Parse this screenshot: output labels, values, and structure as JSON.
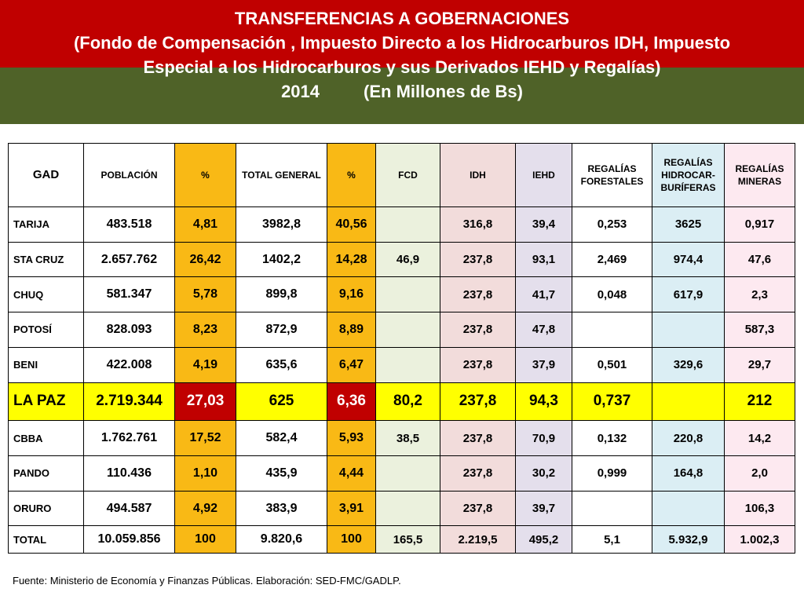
{
  "title": {
    "line1": "TRANSFERENCIAS A GOBERNACIONES",
    "line2": "(Fondo de Compensación , Impuesto Directo a los Hidrocarburos IDH, Impuesto",
    "line3": "Especial a los Hidrocarburos y sus Derivados IEHD y Regalías)",
    "year": "2014",
    "unit": "(En Millones de Bs)"
  },
  "table": {
    "headers": {
      "gad": "GAD",
      "poblacion": "POBLACIÓN",
      "pct1": "%",
      "total_general": "TOTAL GENERAL",
      "pct2": "%",
      "fcd": "FCD",
      "idh": "IDH",
      "iehd": "IEHD",
      "reg_forestales": "REGALÍAS FORESTALES",
      "reg_hidro": "REGALÍAS HIDROCAR-BURÍFERAS",
      "reg_mineras": "REGALÍAS MINERAS"
    },
    "rows": [
      {
        "gad": "TARIJA",
        "poblacion": "483.518",
        "pct1": "4,81",
        "total": "3982,8",
        "pct2": "40,56",
        "fcd": "",
        "idh": "316,8",
        "iehd": "39,4",
        "forestales": "0,253",
        "hidro": "3625",
        "mineras": "0,917"
      },
      {
        "gad": "STA CRUZ",
        "poblacion": "2.657.762",
        "pct1": "26,42",
        "total": "1402,2",
        "pct2": "14,28",
        "fcd": "46,9",
        "idh": "237,8",
        "iehd": "93,1",
        "forestales": "2,469",
        "hidro": "974,4",
        "mineras": "47,6"
      },
      {
        "gad": "CHUQ",
        "poblacion": "581.347",
        "pct1": "5,78",
        "total": "899,8",
        "pct2": "9,16",
        "fcd": "",
        "idh": "237,8",
        "iehd": "41,7",
        "forestales": "0,048",
        "hidro": "617,9",
        "mineras": "2,3"
      },
      {
        "gad": "POTOSÍ",
        "poblacion": "828.093",
        "pct1": "8,23",
        "total": "872,9",
        "pct2": "8,89",
        "fcd": "",
        "idh": "237,8",
        "iehd": "47,8",
        "forestales": "",
        "hidro": "",
        "mineras": "587,3"
      },
      {
        "gad": "BENI",
        "poblacion": "422.008",
        "pct1": "4,19",
        "total": "635,6",
        "pct2": "6,47",
        "fcd": "",
        "idh": "237,8",
        "iehd": "37,9",
        "forestales": "0,501",
        "hidro": "329,6",
        "mineras": "29,7"
      },
      {
        "gad": "LA PAZ",
        "poblacion": "2.719.344",
        "pct1": "27,03",
        "total": "625",
        "pct2": "6,36",
        "fcd": "80,2",
        "idh": "237,8",
        "iehd": "94,3",
        "forestales": "0,737",
        "hidro": "",
        "mineras": "212"
      },
      {
        "gad": "CBBA",
        "poblacion": "1.762.761",
        "pct1": "17,52",
        "total": "582,4",
        "pct2": "5,93",
        "fcd": "38,5",
        "idh": "237,8",
        "iehd": "70,9",
        "forestales": "0,132",
        "hidro": "220,8",
        "mineras": "14,2"
      },
      {
        "gad": "PANDO",
        "poblacion": "110.436",
        "pct1": "1,10",
        "total": "435,9",
        "pct2": "4,44",
        "fcd": "",
        "idh": "237,8",
        "iehd": "30,2",
        "forestales": "0,999",
        "hidro": "164,8",
        "mineras": "2,0"
      },
      {
        "gad": "ORURO",
        "poblacion": "494.587",
        "pct1": "4,92",
        "total": "383,9",
        "pct2": "3,91",
        "fcd": "",
        "idh": "237,8",
        "iehd": "39,7",
        "forestales": "",
        "hidro": "",
        "mineras": "106,3"
      }
    ],
    "total": {
      "gad": "TOTAL",
      "poblacion": "10.059.856",
      "pct1": "100",
      "total": "9.820,6",
      "pct2": "100",
      "fcd": "165,5",
      "idh": "2.219,5",
      "iehd": "495,2",
      "forestales": "5,1",
      "hidro": "5.932,9",
      "mineras": "1.002,3"
    }
  },
  "source": "Fuente: Ministerio de Economía y Finanzas Públicas. Elaboración: SED-FMC/GADLP."
}
